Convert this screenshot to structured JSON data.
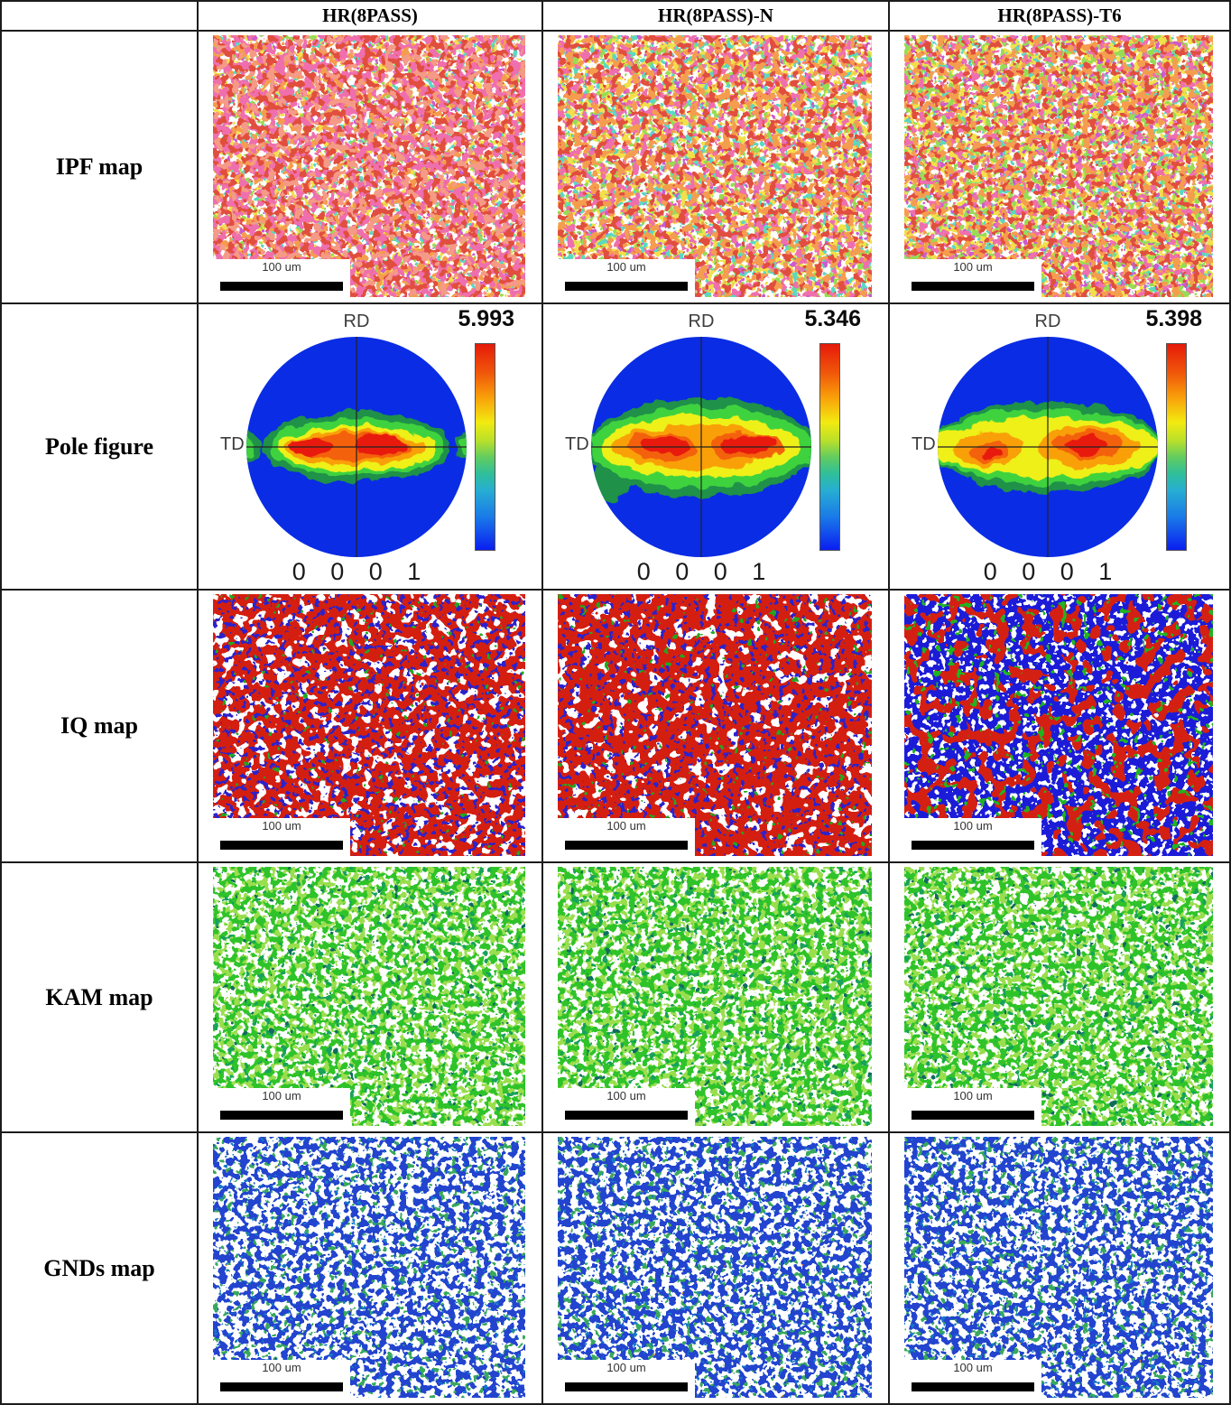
{
  "columns": [
    "HR(8PASS)",
    "HR(8PASS)-N",
    "HR(8PASS)-T6"
  ],
  "row_labels": [
    "IPF map",
    "Pole figure",
    "IQ map",
    "KAM map",
    "GNDs map"
  ],
  "scale_bar": {
    "label": "100 um"
  },
  "pole_figures": [
    {
      "max_value": "5.993",
      "axis_top": "RD",
      "axis_left": "TD",
      "plane_label": "0 0 0 1",
      "contours": [
        {
          "color": "#1f9148",
          "shapes": [
            [
              0,
              0,
              105,
              40
            ],
            [
              -120,
              0,
              14,
              16
            ],
            [
              120,
              0,
              10,
              14
            ]
          ]
        },
        {
          "color": "#3fd23f",
          "shapes": [
            [
              0,
              0,
              98,
              32
            ],
            [
              -121,
              0,
              9,
              11
            ],
            [
              121,
              0,
              7,
              10
            ]
          ]
        },
        {
          "color": "#eef018",
          "shapes": [
            [
              0,
              2,
              88,
              25
            ]
          ]
        },
        {
          "color": "#f9a008",
          "shapes": [
            [
              -2,
              1,
              76,
              19
            ]
          ]
        },
        {
          "color": "#f4610c",
          "shapes": [
            [
              0,
              0,
              62,
              14
            ]
          ]
        },
        {
          "color": "#e81a0e",
          "shapes": [
            [
              -50,
              0,
              22,
              9
            ],
            [
              28,
              -2,
              30,
              11
            ]
          ]
        }
      ]
    },
    {
      "max_value": "5.346",
      "axis_top": "RD",
      "axis_left": "TD",
      "plane_label": "0 0 0 1",
      "contours": [
        {
          "color": "#1f9148",
          "shapes": [
            [
              0,
              0,
              126,
              55
            ],
            [
              -100,
              40,
              22,
              22
            ]
          ]
        },
        {
          "color": "#3fd23f",
          "shapes": [
            [
              0,
              0,
              124,
              45
            ]
          ]
        },
        {
          "color": "#eef018",
          "shapes": [
            [
              0,
              0,
              110,
              34
            ]
          ]
        },
        {
          "color": "#f9a008",
          "shapes": [
            [
              -5,
              0,
              92,
              25
            ]
          ]
        },
        {
          "color": "#f4610c",
          "shapes": [
            [
              -45,
              0,
              38,
              16
            ],
            [
              50,
              0,
              40,
              16
            ]
          ]
        },
        {
          "color": "#e81a0e",
          "shapes": [
            [
              -42,
              -2,
              26,
              11
            ],
            [
              52,
              -2,
              30,
              12
            ]
          ]
        }
      ]
    },
    {
      "max_value": "5.398",
      "axis_top": "RD",
      "axis_left": "TD",
      "plane_label": "0 0 0 1",
      "contours": [
        {
          "color": "#1f9148",
          "shapes": [
            [
              0,
              0,
              127,
              50
            ]
          ]
        },
        {
          "color": "#3fd23f",
          "shapes": [
            [
              0,
              0,
              126,
              42
            ]
          ]
        },
        {
          "color": "#eef018",
          "shapes": [
            [
              0,
              0,
              125,
              33
            ]
          ]
        },
        {
          "color": "#f9a008",
          "shapes": [
            [
              -65,
              2,
              38,
              20
            ],
            [
              42,
              0,
              58,
              23
            ]
          ]
        },
        {
          "color": "#f4610c",
          "shapes": [
            [
              -62,
              6,
              22,
              11
            ],
            [
              45,
              -2,
              40,
              15
            ]
          ]
        },
        {
          "color": "#e81a0e",
          "shapes": [
            [
              -60,
              8,
              12,
              6
            ],
            [
              42,
              -2,
              24,
              10
            ]
          ]
        }
      ]
    }
  ],
  "colors": {
    "pole_blue": "#0a2ce4",
    "grid_line": "#1c1c1c",
    "colorbar": [
      "#e51a0a 0%",
      "#f0570a 14%",
      "#f9a00a 26%",
      "#f2ea10 38%",
      "#b8e02a 47%",
      "#62cc60 55%",
      "#2fbf9a 63%",
      "#27aed2 71%",
      "#1a7ae8 84%",
      "#0a1ef0 100%"
    ]
  },
  "textures": {
    "ipf_0": {
      "bg": "#fffefe",
      "seed": 3,
      "layers": [
        [
          "#f2e04a",
          0.12,
          0.6
        ],
        [
          "#5ad8c4",
          0.13,
          0.64
        ],
        [
          "#97dc55",
          0.14,
          0.67
        ],
        [
          "#cc5ad0",
          0.14,
          0.66
        ],
        [
          "#f59d4e",
          0.11,
          0.56
        ],
        [
          "#ef6fae",
          0.1,
          0.52
        ],
        [
          "#e14e3e",
          0.12,
          0.56
        ],
        [
          "#f59a86",
          0.1,
          0.62
        ]
      ]
    },
    "ipf_1": {
      "bg": "#fffefc",
      "seed": 29,
      "layers": [
        [
          "#f2e04a",
          0.11,
          0.52
        ],
        [
          "#97dc55",
          0.13,
          0.62
        ],
        [
          "#5ad8c4",
          0.12,
          0.62
        ],
        [
          "#cc5ad0",
          0.14,
          0.66
        ],
        [
          "#ef6fae",
          0.11,
          0.58
        ],
        [
          "#f59d4e",
          0.11,
          0.57
        ],
        [
          "#e14e3e",
          0.12,
          0.6
        ]
      ]
    },
    "ipf_2": {
      "bg": "#fffefc",
      "seed": 61,
      "layers": [
        [
          "#f2e04a",
          0.1,
          0.5
        ],
        [
          "#5ad8c4",
          0.13,
          0.63
        ],
        [
          "#97dc55",
          0.12,
          0.58
        ],
        [
          "#cc5ad0",
          0.15,
          0.64
        ],
        [
          "#ef6fae",
          0.12,
          0.6
        ],
        [
          "#f59d4e",
          0.11,
          0.58
        ],
        [
          "#e14e3e",
          0.13,
          0.6
        ]
      ]
    },
    "iq_0": {
      "bg": "#ffffff",
      "seed": 5,
      "layers": [
        [
          "#d41f10",
          0.085,
          0.42
        ],
        [
          "#2b22cc",
          0.16,
          0.62
        ],
        [
          "#21a821",
          0.12,
          0.74
        ]
      ]
    },
    "iq_1": {
      "bg": "#ffffff",
      "seed": 17,
      "layers": [
        [
          "#d41f10",
          0.08,
          0.4
        ],
        [
          "#2b22cc",
          0.16,
          0.63
        ],
        [
          "#21a821",
          0.12,
          0.73
        ]
      ]
    },
    "iq_2": {
      "bg": "#ffffff",
      "seed": 41,
      "layers": [
        [
          "#1c1cd8",
          0.15,
          0.42
        ],
        [
          "#d42012",
          0.06,
          0.55
        ],
        [
          "#21b321",
          0.12,
          0.68
        ]
      ]
    },
    "kam_0": {
      "bg": "#fefefe",
      "seed": 9,
      "layers": [
        [
          "#9ade4e",
          0.13,
          0.52
        ],
        [
          "#2fc32a",
          0.14,
          0.54
        ],
        [
          "#18a25a",
          0.12,
          0.7
        ],
        [
          "#126b60",
          0.1,
          0.76
        ]
      ]
    },
    "kam_1": {
      "bg": "#fefefe",
      "seed": 23,
      "layers": [
        [
          "#9ade4e",
          0.13,
          0.51
        ],
        [
          "#2fc32a",
          0.14,
          0.53
        ],
        [
          "#18a25a",
          0.12,
          0.69
        ],
        [
          "#126b60",
          0.1,
          0.76
        ]
      ]
    },
    "kam_2": {
      "bg": "#fefefe",
      "seed": 47,
      "layers": [
        [
          "#9ade4e",
          0.13,
          0.52
        ],
        [
          "#2fc32a",
          0.13,
          0.53
        ],
        [
          "#18a25a",
          0.12,
          0.69
        ],
        [
          "#126b60",
          0.1,
          0.75
        ]
      ]
    },
    "gnd_0": {
      "bg": "#ffffff",
      "seed": 13,
      "layers": [
        [
          "#39a85e",
          0.14,
          0.62
        ],
        [
          "#2344cf",
          0.13,
          0.52
        ],
        [
          "#1779c8",
          0.17,
          0.72
        ],
        [
          "#e07818",
          0.22,
          0.84
        ]
      ]
    },
    "gnd_1": {
      "bg": "#ffffff",
      "seed": 31,
      "layers": [
        [
          "#39a85e",
          0.14,
          0.61
        ],
        [
          "#2344cf",
          0.13,
          0.51
        ],
        [
          "#1779c8",
          0.17,
          0.71
        ],
        [
          "#e07818",
          0.22,
          0.83
        ]
      ]
    },
    "gnd_2": {
      "bg": "#ffffff",
      "seed": 53,
      "layers": [
        [
          "#39a85e",
          0.14,
          0.61
        ],
        [
          "#2344cf",
          0.13,
          0.51
        ],
        [
          "#1779c8",
          0.17,
          0.71
        ],
        [
          "#e07818",
          0.21,
          0.83
        ]
      ]
    }
  }
}
